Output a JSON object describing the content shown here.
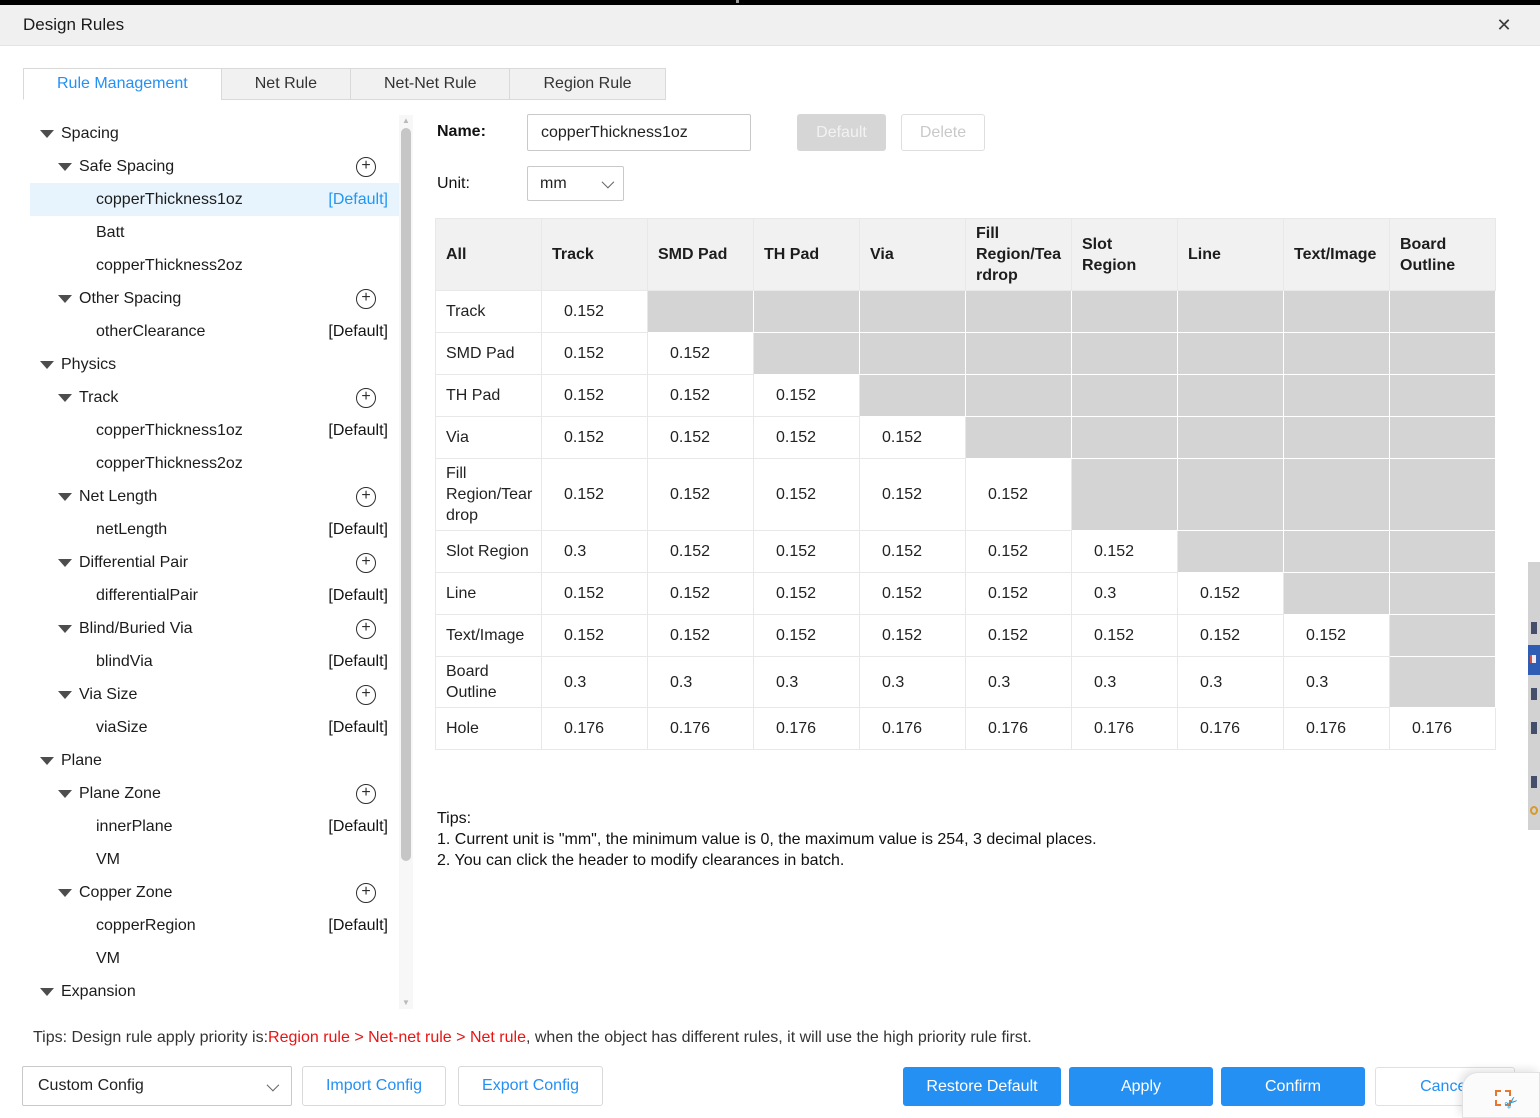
{
  "window": {
    "title": "Design Rules"
  },
  "icons": {
    "plus": "+",
    "close": "✕",
    "scroll_up": "▲",
    "scroll_down": "▼",
    "scissors": "✂"
  },
  "colors": {
    "accent": "#2490f4",
    "red": "#e81414",
    "disabled_cell": "#d4d4d4",
    "selected_row": "#e7f4fd"
  },
  "tabs": [
    {
      "label": "Rule Management",
      "active": true
    },
    {
      "label": "Net Rule",
      "active": false
    },
    {
      "label": "Net-Net Rule",
      "active": false
    },
    {
      "label": "Region Rule",
      "active": false
    }
  ],
  "tree": {
    "items": [
      {
        "label": "Spacing",
        "level": 0,
        "expand": true
      },
      {
        "label": "Safe Spacing",
        "level": 1,
        "expand": true,
        "add": true
      },
      {
        "label": "copperThickness1oz",
        "level": 2,
        "badge": "[Default]",
        "selected": true
      },
      {
        "label": "Batt",
        "level": 2
      },
      {
        "label": "copperThickness2oz",
        "level": 2
      },
      {
        "label": "Other Spacing",
        "level": 1,
        "expand": true,
        "add": true
      },
      {
        "label": "otherClearance",
        "level": 2,
        "badge": "[Default]"
      },
      {
        "label": "Physics",
        "level": 0,
        "expand": true
      },
      {
        "label": "Track",
        "level": 1,
        "expand": true,
        "add": true
      },
      {
        "label": "copperThickness1oz",
        "level": 2,
        "badge": "[Default]"
      },
      {
        "label": "copperThickness2oz",
        "level": 2
      },
      {
        "label": "Net Length",
        "level": 1,
        "expand": true,
        "add": true
      },
      {
        "label": "netLength",
        "level": 2,
        "badge": "[Default]"
      },
      {
        "label": "Differential Pair",
        "level": 1,
        "expand": true,
        "add": true
      },
      {
        "label": "differentialPair",
        "level": 2,
        "badge": "[Default]"
      },
      {
        "label": "Blind/Buried Via",
        "level": 1,
        "expand": true,
        "add": true
      },
      {
        "label": "blindVia",
        "level": 2,
        "badge": "[Default]"
      },
      {
        "label": "Via Size",
        "level": 1,
        "expand": true,
        "add": true
      },
      {
        "label": "viaSize",
        "level": 2,
        "badge": "[Default]"
      },
      {
        "label": "Plane",
        "level": 0,
        "expand": true
      },
      {
        "label": "Plane Zone",
        "level": 1,
        "expand": true,
        "add": true
      },
      {
        "label": "innerPlane",
        "level": 2,
        "badge": "[Default]"
      },
      {
        "label": "VM",
        "level": 2
      },
      {
        "label": "Copper Zone",
        "level": 1,
        "expand": true,
        "add": true
      },
      {
        "label": "copperRegion",
        "level": 2,
        "badge": "[Default]"
      },
      {
        "label": "VM",
        "level": 2
      },
      {
        "label": "Expansion",
        "level": 0,
        "expand": true
      }
    ]
  },
  "form": {
    "name_label": "Name:",
    "name_value": "copperThickness1oz",
    "default_button": "Default",
    "delete_button": "Delete",
    "unit_label": "Unit:",
    "unit_value": "mm"
  },
  "matrix": {
    "columns": [
      "All",
      "Track",
      "SMD Pad",
      "TH Pad",
      "Via",
      "Fill Region/Teardrop",
      "Slot Region",
      "Line",
      "Text/Image",
      "Board Outline"
    ],
    "rows": [
      {
        "label": "Track",
        "values": [
          "0.152"
        ]
      },
      {
        "label": "SMD Pad",
        "values": [
          "0.152",
          "0.152"
        ]
      },
      {
        "label": "TH Pad",
        "values": [
          "0.152",
          "0.152",
          "0.152"
        ]
      },
      {
        "label": "Via",
        "values": [
          "0.152",
          "0.152",
          "0.152",
          "0.152"
        ]
      },
      {
        "label": "Fill Region/Teardrop",
        "values": [
          "0.152",
          "0.152",
          "0.152",
          "0.152",
          "0.152"
        ]
      },
      {
        "label": "Slot Region",
        "values": [
          "0.3",
          "0.152",
          "0.152",
          "0.152",
          "0.152",
          "0.152"
        ]
      },
      {
        "label": "Line",
        "values": [
          "0.152",
          "0.152",
          "0.152",
          "0.152",
          "0.152",
          "0.3",
          "0.152"
        ]
      },
      {
        "label": "Text/Image",
        "values": [
          "0.152",
          "0.152",
          "0.152",
          "0.152",
          "0.152",
          "0.152",
          "0.152",
          "0.152"
        ]
      },
      {
        "label": "Board Outline",
        "values": [
          "0.3",
          "0.3",
          "0.3",
          "0.3",
          "0.3",
          "0.3",
          "0.3",
          "0.3"
        ]
      },
      {
        "label": "Hole",
        "values": [
          "0.176",
          "0.176",
          "0.176",
          "0.176",
          "0.176",
          "0.176",
          "0.176",
          "0.176",
          "0.176"
        ]
      }
    ]
  },
  "tips": {
    "heading": "Tips:",
    "lines": [
      "1. Current unit is \"mm\", the minimum value is 0, the maximum value is 254, 3 decimal places.",
      "2. You can click the header to modify clearances in batch."
    ]
  },
  "footer": {
    "priority_prefix": "Tips: Design rule apply priority is:",
    "priority_red": "Region rule > Net-net rule > Net rule",
    "priority_suffix": ", when the object has different rules, it will use the high priority rule first.",
    "config_select": "Custom Config",
    "import_button": "Import Config",
    "export_button": "Export Config",
    "restore_button": "Restore Default",
    "apply_button": "Apply",
    "confirm_button": "Confirm",
    "cancel_button": "Cancel"
  }
}
